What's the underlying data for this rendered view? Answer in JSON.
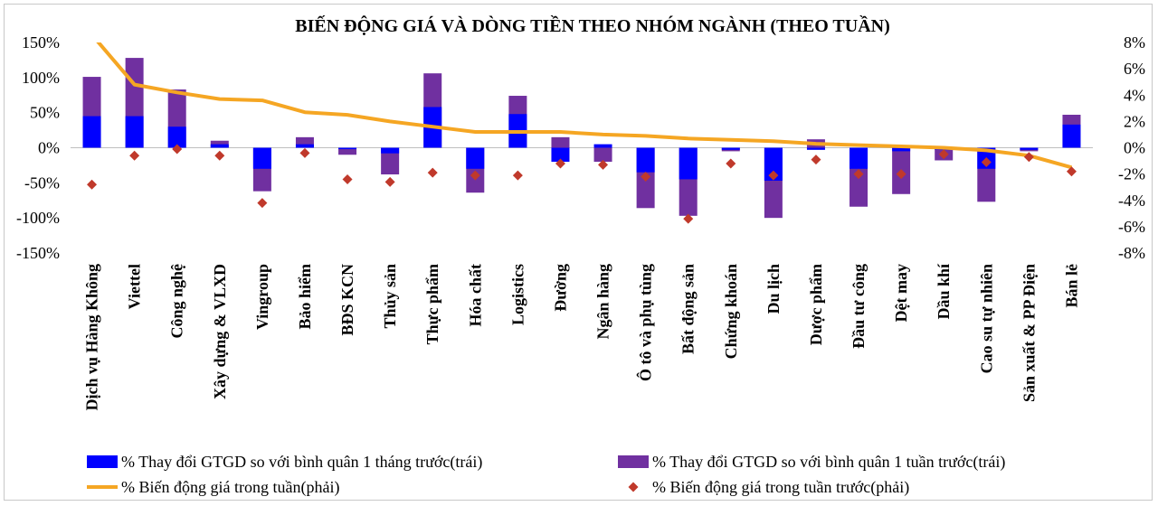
{
  "chart_data": {
    "type": "bar",
    "title": "BIẾN ĐỘNG GIÁ VÀ DÒNG TIỀN THEO NHÓM NGÀNH (THEO TUẦN)",
    "categories": [
      "Dịch vụ Hàng Không",
      "Viettel",
      "Công nghệ",
      "Xây dựng & VLXD",
      "Vingroup",
      "Bảo hiểm",
      "BĐS KCN",
      "Thủy sản",
      "Thực phẩm",
      "Hóa chất",
      "Logistics",
      "Đường",
      "Ngân hàng",
      "Ô tô và phụ tùng",
      "Bất động sản",
      "Chứng khoán",
      "Du lịch",
      "Dược phẩm",
      "Đầu tư công",
      "Dệt may",
      "Dầu khí",
      "Cao su tự nhiên",
      "Sản xuất & PP Điện",
      "Bán lẻ"
    ],
    "y_left": {
      "ylim": [
        -150,
        150
      ],
      "ticks": [
        150,
        100,
        50,
        0,
        -50,
        -100,
        -150
      ],
      "tick_labels": [
        "150%",
        "100%",
        "50%",
        "0%",
        "-50%",
        "-100%",
        "-150%"
      ]
    },
    "y_right": {
      "ylim": [
        -8,
        8
      ],
      "ticks": [
        8,
        6,
        4,
        2,
        0,
        -2,
        -4,
        -6,
        -8
      ],
      "tick_labels": [
        "8%",
        "6%",
        "4%",
        "2%",
        "0%",
        "-2%",
        "-4%",
        "-6%",
        "-8%"
      ]
    },
    "grid": false,
    "legend_position": "bottom",
    "series": [
      {
        "name": "% Thay đổi GTGD so với bình quân 1 tháng trước(trái)",
        "type": "bar",
        "axis": "left",
        "color": "#0000ff",
        "values": [
          45,
          45,
          30,
          5,
          -30,
          5,
          -2,
          -8,
          58,
          -30,
          48,
          -20,
          5,
          -35,
          -45,
          -3,
          -47,
          -3,
          -30,
          -5,
          -3,
          -30,
          -3,
          33
        ]
      },
      {
        "name": "% Thay đổi GTGD so với bình quân 1 tuần trước(trái)",
        "type": "bar",
        "axis": "left",
        "color": "#7030a0",
        "values": [
          101,
          128,
          83,
          10,
          -62,
          15,
          -10,
          -38,
          106,
          -64,
          74,
          15,
          -20,
          -86,
          -97,
          -5,
          -100,
          12,
          -84,
          -66,
          -18,
          -77,
          -5,
          47
        ]
      },
      {
        "name": "% Biến động giá trong tuần(phải)",
        "type": "line",
        "axis": "right",
        "color": "#f5a623",
        "values": [
          8.6,
          4.8,
          4.2,
          3.7,
          3.6,
          2.7,
          2.5,
          2.0,
          1.6,
          1.2,
          1.2,
          1.2,
          1.0,
          0.9,
          0.7,
          0.6,
          0.5,
          0.3,
          0.2,
          0.1,
          0.0,
          -0.2,
          -0.6,
          -1.5
        ]
      },
      {
        "name": "% Biến động giá trong tuần trước(phải)",
        "type": "scatter",
        "axis": "right",
        "color": "#c0392b",
        "values": [
          -2.8,
          -0.6,
          -0.1,
          -0.6,
          -4.2,
          -0.4,
          -2.4,
          -2.6,
          -1.9,
          -2.1,
          -2.1,
          -1.2,
          -1.3,
          -2.2,
          -5.4,
          -1.2,
          -2.1,
          -0.9,
          -2.0,
          -2.0,
          -0.5,
          -1.1,
          -0.7,
          -1.8
        ]
      }
    ]
  }
}
